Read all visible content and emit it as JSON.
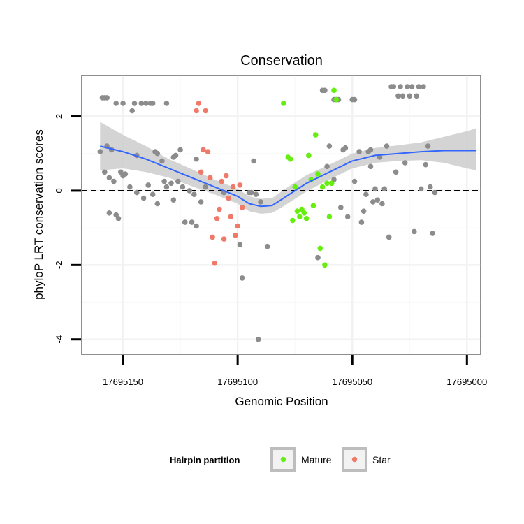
{
  "chart_data": {
    "type": "scatter",
    "title": "Conservation",
    "xlabel": "Genomic Position",
    "ylabel": "phyloP LRT conservation scores",
    "x_reversed": true,
    "xlim": [
      17695168,
      17694994
    ],
    "ylim": [
      -4.4,
      3.1
    ],
    "x_ticks": [
      17695150,
      17695100,
      17695050,
      17695000
    ],
    "x_tick_labels": [
      "17695150",
      "17695100",
      "17695050",
      "17695000"
    ],
    "y_ticks": [
      -4,
      -2,
      0,
      2
    ],
    "y_tick_labels": [
      "-4",
      "-2",
      "0",
      "2"
    ],
    "reference_line": {
      "y": 0,
      "style": "dashed"
    },
    "legend": {
      "title": "Hairpin partition",
      "position": "bottom",
      "entries": [
        {
          "label": "Mature",
          "color": "#66ee11"
        },
        {
          "label": "Star",
          "color": "#f07a6a"
        }
      ]
    },
    "colors": {
      "other": "#8c8c8c",
      "Mature": "#66ee11",
      "Star": "#f07a6a",
      "smooth": "#3366ff",
      "band": "#cccccc"
    },
    "series": [
      {
        "name": "Other",
        "points": [
          [
            17695160,
            1.05
          ],
          [
            17695159,
            2.5
          ],
          [
            17695158,
            2.5
          ],
          [
            17695157,
            2.5
          ],
          [
            17695158,
            0.5
          ],
          [
            17695157,
            1.2
          ],
          [
            17695156,
            0.35
          ],
          [
            17695155,
            1.1
          ],
          [
            17695154,
            0.25
          ],
          [
            17695156,
            -0.6
          ],
          [
            17695153,
            -0.65
          ],
          [
            17695152,
            -0.75
          ],
          [
            17695153,
            2.35
          ],
          [
            17695150,
            2.35
          ],
          [
            17695151,
            0.5
          ],
          [
            17695150,
            0.4
          ],
          [
            17695149,
            0.45
          ],
          [
            17695147,
            0.1
          ],
          [
            17695146,
            2.15
          ],
          [
            17695145,
            2.35
          ],
          [
            17695144,
            0.95
          ],
          [
            17695144,
            -0.05
          ],
          [
            17695142,
            2.35
          ],
          [
            17695141,
            -0.2
          ],
          [
            17695140,
            2.35
          ],
          [
            17695139,
            0.15
          ],
          [
            17695138,
            2.35
          ],
          [
            17695137,
            -0.1
          ],
          [
            17695137,
            2.35
          ],
          [
            17695136,
            1.05
          ],
          [
            17695135,
            1.0
          ],
          [
            17695135,
            -0.35
          ],
          [
            17695133,
            0.8
          ],
          [
            17695132,
            0.25
          ],
          [
            17695131,
            0.1
          ],
          [
            17695131,
            2.35
          ],
          [
            17695129,
            0.2
          ],
          [
            17695128,
            0.9
          ],
          [
            17695128,
            -0.25
          ],
          [
            17695127,
            0.95
          ],
          [
            17695126,
            0.25
          ],
          [
            17695125,
            1.1
          ],
          [
            17695124,
            0.1
          ],
          [
            17695123,
            -0.85
          ],
          [
            17695121,
            0
          ],
          [
            17695120,
            -0.85
          ],
          [
            17695119,
            -0.1
          ],
          [
            17695118,
            -0.95
          ],
          [
            17695118,
            0.85
          ],
          [
            17695116,
            -0.3
          ],
          [
            17695114,
            0.1
          ],
          [
            17695106,
            -0.05
          ],
          [
            17695099,
            -1.45
          ],
          [
            17695098,
            -2.35
          ],
          [
            17695095,
            -0.05
          ],
          [
            17695094,
            -0.05
          ],
          [
            17695093,
            0.8
          ],
          [
            17695092,
            -0.1
          ],
          [
            17695091,
            -4.0
          ],
          [
            17695090,
            -0.3
          ],
          [
            17695087,
            -1.5
          ],
          [
            17695065,
            -1.8
          ],
          [
            17695063,
            2.7
          ],
          [
            17695062,
            2.7
          ],
          [
            17695061,
            0.65
          ],
          [
            17695060,
            1.2
          ],
          [
            17695058,
            2.45
          ],
          [
            17695058,
            0.3
          ],
          [
            17695057,
            2.45
          ],
          [
            17695056,
            2.45
          ],
          [
            17695055,
            -0.45
          ],
          [
            17695054,
            1.1
          ],
          [
            17695053,
            1.15
          ],
          [
            17695052,
            -0.7
          ],
          [
            17695050,
            2.45
          ],
          [
            17695049,
            2.45
          ],
          [
            17695049,
            0.25
          ],
          [
            17695047,
            1.05
          ],
          [
            17695046,
            -0.85
          ],
          [
            17695045,
            -0.55
          ],
          [
            17695044,
            -0.1
          ],
          [
            17695043,
            1.05
          ],
          [
            17695042,
            1.1
          ],
          [
            17695042,
            0.65
          ],
          [
            17695041,
            -0.3
          ],
          [
            17695040,
            0.05
          ],
          [
            17695039,
            -0.25
          ],
          [
            17695038,
            0.9
          ],
          [
            17695037,
            -0.35
          ],
          [
            17695036,
            0.05
          ],
          [
            17695035,
            1.2
          ],
          [
            17695034,
            -1.25
          ],
          [
            17695033,
            2.8
          ],
          [
            17695032,
            2.8
          ],
          [
            17695031,
            0.5
          ],
          [
            17695030,
            2.55
          ],
          [
            17695029,
            2.8
          ],
          [
            17695028,
            2.55
          ],
          [
            17695027,
            0.75
          ],
          [
            17695026,
            2.8
          ],
          [
            17695025,
            2.55
          ],
          [
            17695024,
            2.8
          ],
          [
            17695023,
            -1.1
          ],
          [
            17695022,
            2.55
          ],
          [
            17695021,
            2.8
          ],
          [
            17695020,
            0.05
          ],
          [
            17695019,
            2.8
          ],
          [
            17695018,
            0.7
          ],
          [
            17695017,
            1.2
          ],
          [
            17695016,
            0.1
          ],
          [
            17695015,
            -1.15
          ],
          [
            17695014,
            -0.05
          ]
        ]
      },
      {
        "name": "Mature",
        "points": [
          [
            17695080,
            2.35
          ],
          [
            17695078,
            0.9
          ],
          [
            17695077,
            0.85
          ],
          [
            17695076,
            -0.8
          ],
          [
            17695075,
            0.1
          ],
          [
            17695074,
            -0.55
          ],
          [
            17695073,
            -0.7
          ],
          [
            17695072,
            -0.5
          ],
          [
            17695071,
            -0.6
          ],
          [
            17695070,
            -0.75
          ],
          [
            17695069,
            0.95
          ],
          [
            17695068,
            0.3
          ],
          [
            17695067,
            -0.4
          ],
          [
            17695066,
            1.5
          ],
          [
            17695065,
            0.45
          ],
          [
            17695064,
            -1.55
          ],
          [
            17695063,
            0.1
          ],
          [
            17695062,
            -2.0
          ],
          [
            17695061,
            0.2
          ],
          [
            17695060,
            -0.7
          ],
          [
            17695059,
            0.2
          ],
          [
            17695058,
            2.7
          ],
          [
            17695057,
            2.45
          ]
        ]
      },
      {
        "name": "Star",
        "points": [
          [
            17695118,
            2.15
          ],
          [
            17695117,
            2.35
          ],
          [
            17695116,
            0.5
          ],
          [
            17695115,
            1.1
          ],
          [
            17695114,
            2.15
          ],
          [
            17695113,
            1.05
          ],
          [
            17695112,
            0.35
          ],
          [
            17695111,
            -1.25
          ],
          [
            17695110,
            -1.95
          ],
          [
            17695109,
            -0.75
          ],
          [
            17695108,
            -0.5
          ],
          [
            17695107,
            0.25
          ],
          [
            17695106,
            -1.3
          ],
          [
            17695105,
            0.4
          ],
          [
            17695104,
            -0.2
          ],
          [
            17695103,
            -0.7
          ],
          [
            17695102,
            0.1
          ],
          [
            17695101,
            -1.2
          ],
          [
            17695100,
            -0.95
          ],
          [
            17695099,
            0.15
          ],
          [
            17695098,
            -0.45
          ]
        ]
      }
    ],
    "smooth": {
      "x": [
        17695160,
        17695150,
        17695140,
        17695130,
        17695120,
        17695110,
        17695100,
        17695095,
        17695090,
        17695085,
        17695080,
        17695070,
        17695060,
        17695050,
        17695040,
        17695030,
        17695020,
        17695010,
        17695000,
        17694996
      ],
      "y": [
        1.2,
        1.05,
        0.85,
        0.6,
        0.35,
        0.1,
        -0.15,
        -0.35,
        -0.42,
        -0.4,
        -0.2,
        0.2,
        0.5,
        0.8,
        0.95,
        1.0,
        1.05,
        1.08,
        1.08,
        1.08
      ],
      "lower": [
        0.55,
        0.6,
        0.5,
        0.35,
        0.12,
        -0.1,
        -0.35,
        -0.55,
        -0.62,
        -0.6,
        -0.42,
        -0.02,
        0.3,
        0.6,
        0.75,
        0.8,
        0.82,
        0.75,
        0.6,
        0.55
      ],
      "upper": [
        1.85,
        1.5,
        1.2,
        0.85,
        0.58,
        0.3,
        0.05,
        -0.15,
        -0.22,
        -0.2,
        0.02,
        0.42,
        0.7,
        1.0,
        1.15,
        1.22,
        1.3,
        1.45,
        1.6,
        1.68
      ]
    }
  }
}
